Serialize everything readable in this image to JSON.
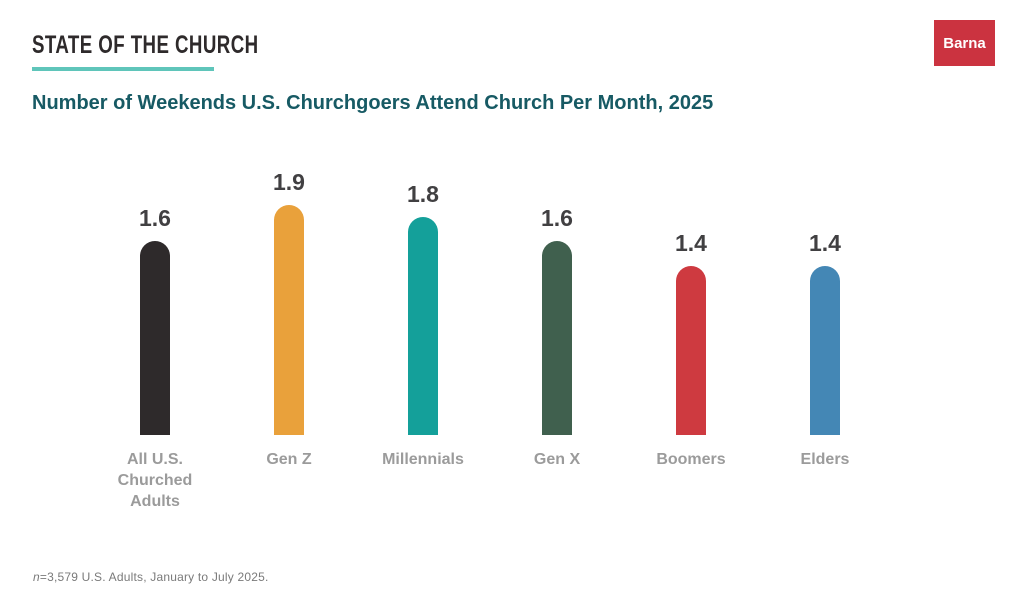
{
  "header": {
    "brand": "STATE OF THE CHURCH",
    "logo": "Barna",
    "accent_color": "#5FC5BA",
    "logo_color": "#CB3340"
  },
  "title": "Number of Weekends U.S. Churchgoers Attend Church Per Month, 2025",
  "chart_data": {
    "type": "bar",
    "categories": [
      "All U.S. Churched Adults",
      "Gen Z",
      "Millennials",
      "Gen X",
      "Boomers",
      "Elders"
    ],
    "values": [
      1.6,
      1.9,
      1.8,
      1.6,
      1.4,
      1.4
    ],
    "value_labels": [
      "1.6",
      "1.9",
      "1.8",
      "1.6",
      "1.4",
      "1.4"
    ],
    "colors": [
      "#2e2a2b",
      "#e9a13b",
      "#14a09a",
      "#40604e",
      "#ce3a40",
      "#4487b5"
    ],
    "title": "Number of Weekends U.S. Churchgoers Attend Church Per Month, 2025",
    "xlabel": "",
    "ylabel": "",
    "ylim": [
      0,
      2
    ],
    "grid": false,
    "legend": "none"
  },
  "footnote": {
    "italic": "n",
    "rest": "=3,579 U.S. Adults, January to July 2025."
  }
}
